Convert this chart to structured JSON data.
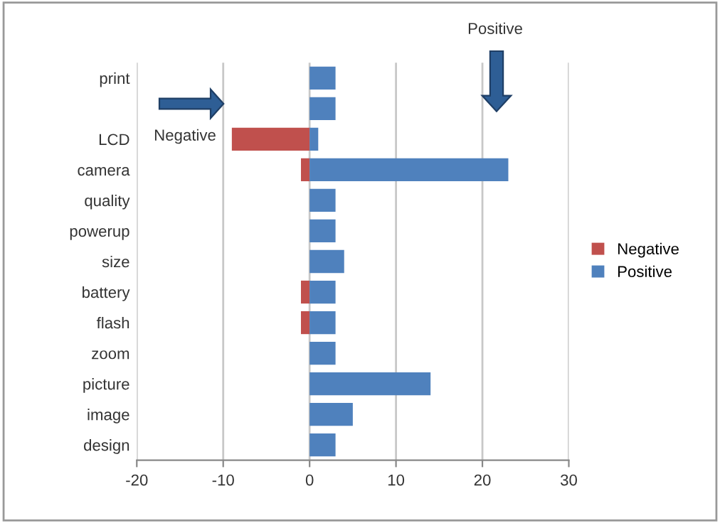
{
  "chart_data": {
    "type": "bar",
    "orientation": "horizontal",
    "stacked": true,
    "categories": [
      "print",
      null,
      "LCD",
      "camera",
      "quality",
      "powerup",
      "size",
      "battery",
      "flash",
      "zoom",
      "picture",
      "image",
      "design"
    ],
    "series": [
      {
        "name": "Negative",
        "color": "#c0504d",
        "values": [
          0,
          0,
          -9,
          -1,
          0,
          0,
          0,
          -1,
          -1,
          0,
          0,
          0,
          0
        ]
      },
      {
        "name": "Positive",
        "color": "#4f81bd",
        "values": [
          3,
          3,
          1,
          23,
          3,
          3,
          4,
          3,
          3,
          3,
          14,
          5,
          3
        ]
      }
    ],
    "xlim": [
      -20,
      30
    ],
    "xticks": [
      -20,
      -10,
      0,
      10,
      20,
      30
    ],
    "grid": "x",
    "legend": "right",
    "annotations": [
      "Negative",
      "Positive"
    ]
  }
}
